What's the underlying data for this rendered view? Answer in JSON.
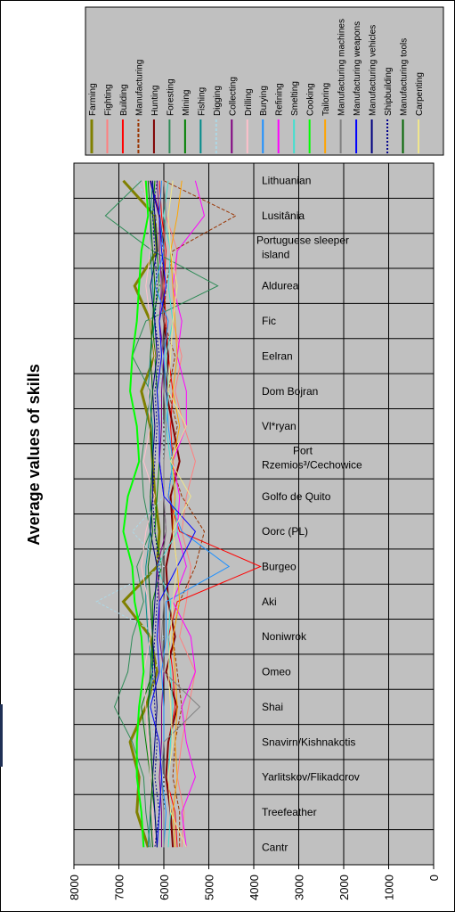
{
  "colors": {
    "plot_bg": "#c0c0c0",
    "legend_bg": "#c0c0c0",
    "grid": "#000000"
  },
  "chart_data": {
    "type": "line",
    "title": "Average values of skills",
    "orientation": "rotated-90",
    "categories": [
      "Lithuanian",
      "Lusitânia",
      "Portuguese sleeper island",
      "Aldurea",
      "Fic",
      "Eelran",
      "Dom Bojran",
      "Vl*ryan",
      "Port Rzemios³/Cechowice",
      "Golfo de Quito",
      "Oorc (PL)",
      "Burgeo",
      "Aki",
      "Noniwrok",
      "Omeo",
      "Shai",
      "Snavirn/Kishnakotis",
      "Yarlitskov/Flikadorov",
      "Treefeather",
      "Cantr"
    ],
    "category_label_lines": [
      [
        "Lithuanian"
      ],
      [
        "Lusitânia"
      ],
      [
        "Portuguese sleeper",
        "island"
      ],
      [
        "Aldurea"
      ],
      [
        "Fic"
      ],
      [
        "Eelran"
      ],
      [
        "Dom Bojran"
      ],
      [
        "Vl*ryan"
      ],
      [
        "Port",
        "Rzemios³/Cechowice"
      ],
      [
        "Golfo de Quito"
      ],
      [
        "Oorc (PL)"
      ],
      [
        "Burgeo"
      ],
      [
        "Aki"
      ],
      [
        "Noniwrok"
      ],
      [
        "Omeo"
      ],
      [
        "Shai"
      ],
      [
        "Snavirn/Kishnakotis"
      ],
      [
        "Yarlitskov/Flikadorov"
      ],
      [
        "Treefeather"
      ],
      [
        "Cantr"
      ]
    ],
    "ylim": [
      0,
      8000
    ],
    "yticks": [
      8000,
      7000,
      6000,
      5000,
      4000,
      3000,
      2000,
      1000,
      0
    ],
    "grid": true,
    "legend_position": "top",
    "series": [
      {
        "name": "Farming",
        "color": "#808000",
        "dash": "",
        "width": 3,
        "values": [
          6900,
          6200,
          6150,
          6650,
          6300,
          6200,
          6500,
          6300,
          6250,
          6200,
          6100,
          6150,
          6900,
          6300,
          6150,
          6400,
          6750,
          6550,
          6600,
          6350
        ]
      },
      {
        "name": "Fighting",
        "color": "#ff7f7f",
        "dash": "",
        "width": 1,
        "values": [
          6000,
          5950,
          5700,
          5750,
          5800,
          5600,
          5750,
          5550,
          5300,
          5500,
          5600,
          5400,
          5500,
          5650,
          5300,
          5450,
          5600,
          5700,
          5550,
          5600
        ]
      },
      {
        "name": "Building",
        "color": "#ff0000",
        "dash": "",
        "width": 1,
        "values": [
          6100,
          6050,
          5950,
          6000,
          5950,
          5900,
          5800,
          5850,
          5800,
          5900,
          5650,
          3850,
          5700,
          5900,
          5800,
          5750,
          5900,
          5950,
          5750,
          5700
        ]
      },
      {
        "name": "Manufacturing",
        "color": "#993300",
        "dash": "4,2",
        "width": 1,
        "values": [
          6000,
          4400,
          5800,
          5950,
          6000,
          5750,
          5900,
          5700,
          5850,
          5600,
          5100,
          5300,
          5650,
          5800,
          5700,
          5600,
          5750,
          5800,
          5650,
          5650
        ]
      },
      {
        "name": "Hunting",
        "color": "#800000",
        "dash": "",
        "width": 2,
        "values": [
          6300,
          6100,
          6000,
          6050,
          6000,
          5900,
          5950,
          5800,
          5650,
          5850,
          5800,
          5950,
          5900,
          5750,
          5950,
          5700,
          5900,
          5950,
          5850,
          5800
        ]
      },
      {
        "name": "Foresting",
        "color": "#2e8b57",
        "dash": "",
        "width": 1,
        "values": [
          6500,
          7300,
          6250,
          4800,
          6400,
          6700,
          6300,
          6400,
          6500,
          6450,
          6300,
          6600,
          6450,
          6700,
          6800,
          7100,
          6700,
          6450,
          6400,
          6300
        ]
      },
      {
        "name": "Mining",
        "color": "#008000",
        "dash": "",
        "width": 1,
        "values": [
          6200,
          6250,
          6150,
          6100,
          6250,
          6200,
          6150,
          6100,
          6100,
          6150,
          6200,
          6050,
          6250,
          6250,
          6250,
          6500,
          6400,
          6300,
          6200,
          6150
        ]
      },
      {
        "name": "Fishing",
        "color": "#008b8b",
        "dash": "",
        "width": 1,
        "values": [
          6250,
          6300,
          6300,
          6250,
          6200,
          6300,
          6350,
          6250,
          6250,
          6300,
          6300,
          6400,
          6400,
          6350,
          6250,
          6350,
          6300,
          6250,
          6300,
          6350
        ]
      },
      {
        "name": "Digging",
        "color": "#add8e6",
        "dash": "3,2",
        "width": 1,
        "values": [
          6600,
          6200,
          6000,
          6100,
          6100,
          6000,
          6100,
          6000,
          6000,
          6000,
          6700,
          6000,
          7500,
          6000,
          6200,
          6300,
          6200,
          6000,
          6000,
          6000
        ]
      },
      {
        "name": "Collecting",
        "color": "#800080",
        "dash": "",
        "width": 1,
        "values": [
          6150,
          6100,
          6100,
          6050,
          6100,
          6000,
          6050,
          6050,
          6100,
          6000,
          5950,
          6150,
          6100,
          6100,
          6000,
          6050,
          6050,
          6100,
          6050,
          6050
        ]
      },
      {
        "name": "Drilling",
        "color": "#ffc0cb",
        "dash": "",
        "width": 1,
        "values": [
          6450,
          6350,
          6300,
          6400,
          6300,
          6200,
          6350,
          6300,
          6450,
          6200,
          6400,
          6500,
          6350,
          6300,
          6450,
          6400,
          6350,
          6300,
          6250,
          6200
        ]
      },
      {
        "name": "Burying",
        "color": "#1e90ff",
        "dash": "",
        "width": 1,
        "values": [
          6050,
          6100,
          6000,
          6200,
          5900,
          6000,
          5950,
          5900,
          5800,
          5900,
          5600,
          4550,
          5950,
          5950,
          6050,
          6000,
          6000,
          6050,
          5950,
          6000
        ]
      },
      {
        "name": "Refining",
        "color": "#ff00ff",
        "dash": "",
        "width": 1,
        "values": [
          5300,
          5100,
          5700,
          5800,
          5600,
          5700,
          5500,
          5500,
          5800,
          5650,
          5700,
          5500,
          5800,
          5400,
          5300,
          5600,
          5500,
          5300,
          5600,
          5500
        ]
      },
      {
        "name": "Smelting",
        "color": "#40e0d0",
        "dash": "",
        "width": 1,
        "values": [
          5900,
          6000,
          5850,
          5900,
          5800,
          5950,
          5900,
          5950,
          5850,
          5750,
          5700,
          6150,
          5850,
          5900,
          5850,
          5800,
          5850,
          5900,
          5850,
          5900
        ]
      },
      {
        "name": "Cooking",
        "color": "#00ff00",
        "dash": "",
        "width": 2,
        "values": [
          6400,
          6350,
          6500,
          6550,
          6600,
          6700,
          6750,
          6600,
          6550,
          6800,
          6900,
          6700,
          6650,
          6500,
          6450,
          6550,
          6600,
          6600,
          6500,
          6450
        ]
      },
      {
        "name": "Tailoring",
        "color": "#ffa500",
        "dash": "",
        "width": 1,
        "values": [
          5600,
          5700,
          5850,
          5800,
          5750,
          5700,
          5800,
          5650,
          5800,
          5750,
          5800,
          5700,
          5650,
          5800,
          5750,
          5700,
          5750,
          5700,
          5800,
          5750
        ]
      },
      {
        "name": "Manufacturing machines",
        "color": "#808080",
        "dash": "",
        "width": 1,
        "values": [
          6000,
          5950,
          6000,
          6050,
          6000,
          6050,
          6000,
          5950,
          6000,
          6000,
          5950,
          6050,
          6000,
          6050,
          6000,
          5200,
          6000,
          6050,
          6000,
          6000
        ]
      },
      {
        "name": "Manufacturing weapons",
        "color": "#0000ff",
        "dash": "",
        "width": 1,
        "values": [
          6300,
          6100,
          6050,
          5950,
          6100,
          6050,
          6150,
          6100,
          6100,
          6000,
          5300,
          5700,
          6100,
          6150,
          6100,
          6300,
          6100,
          6050,
          6100,
          6150
        ]
      },
      {
        "name": "Manufacturing vehicles",
        "color": "#000080",
        "dash": "",
        "width": 1,
        "values": [
          6250,
          6200,
          6150,
          6300,
          6200,
          6150,
          6250,
          6200,
          6250,
          6250,
          6300,
          6150,
          6200,
          6250,
          6200,
          6150,
          6200,
          6250,
          6200,
          6150
        ]
      },
      {
        "name": "Shipbuilding",
        "color": "#00008b",
        "dash": "2,2",
        "width": 1,
        "values": [
          6150,
          6250,
          6200,
          6150,
          6200,
          6100,
          6200,
          6150,
          6200,
          6250,
          6200,
          6100,
          6150,
          6200,
          6250,
          6200,
          6150,
          6200,
          6100,
          6200
        ]
      },
      {
        "name": "Manufacturing tools",
        "color": "#006400",
        "dash": "",
        "width": 1,
        "values": [
          6350,
          6300,
          6250,
          6200,
          6250,
          6300,
          6250,
          6300,
          6250,
          6300,
          6250,
          6350,
          6300,
          6250,
          6300,
          6350,
          6300,
          6250,
          6300,
          6250
        ]
      },
      {
        "name": "Carpenting",
        "color": "#f0e68c",
        "dash": "",
        "width": 1,
        "values": [
          5800,
          5900,
          5850,
          5700,
          5800,
          5850,
          5900,
          5500,
          5850,
          5400,
          5800,
          5700,
          5800,
          5850,
          5900,
          5850,
          5800,
          5900,
          5850,
          5500
        ]
      }
    ]
  }
}
